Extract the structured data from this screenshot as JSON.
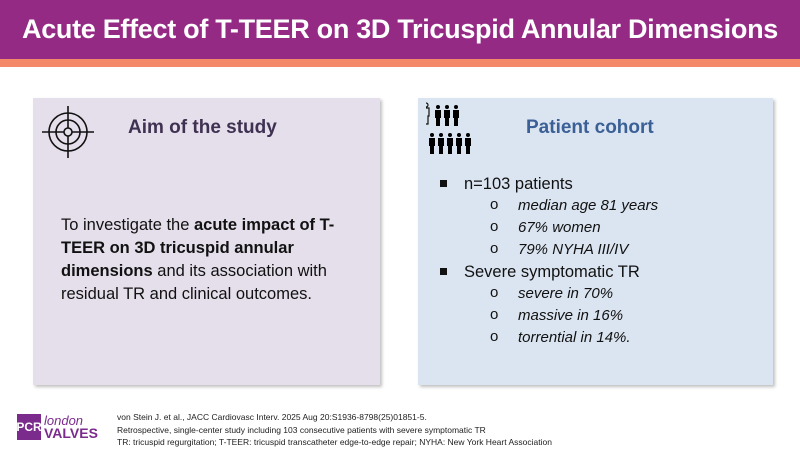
{
  "title": "Acute Effect of T-TEER on 3D Tricuspid Annular Dimensions",
  "aim": {
    "heading": "Aim of the study",
    "text_pre": "To investigate the ",
    "text_bold": "acute impact of T-TEER on 3D tricuspid annular dimensions",
    "text_post": " and its association with residual TR and clinical outcomes."
  },
  "cohort": {
    "heading": "Patient cohort",
    "items": [
      {
        "label": "n=103 patients",
        "sub": [
          "median age 81 years",
          "67% women",
          "79% NYHA III/IV"
        ]
      },
      {
        "label": "Severe symptomatic TR",
        "sub": [
          "severe in 70%",
          "massive in 16%",
          "torrential in 14%."
        ]
      }
    ]
  },
  "logo": {
    "pcr": "PCR",
    "london": "london",
    "valves": "VALVES"
  },
  "footer": [
    "von Stein J. et al., JACC Cardiovasc Interv. 2025 Aug 20:S1936-8798(25)01851-5.",
    "Retrospective, single-center study including 103 consecutive patients with severe symptomatic TR",
    "TR: tricuspid regurgitation; T-TEER: tricuspid transcatheter edge-to-edge repair; NYHA: New York Heart Association"
  ],
  "colors": {
    "header": "#952a85",
    "stripe": "#f4896a",
    "aim_bg": "#e5dfec",
    "cohort_bg": "#dbe5f1"
  }
}
